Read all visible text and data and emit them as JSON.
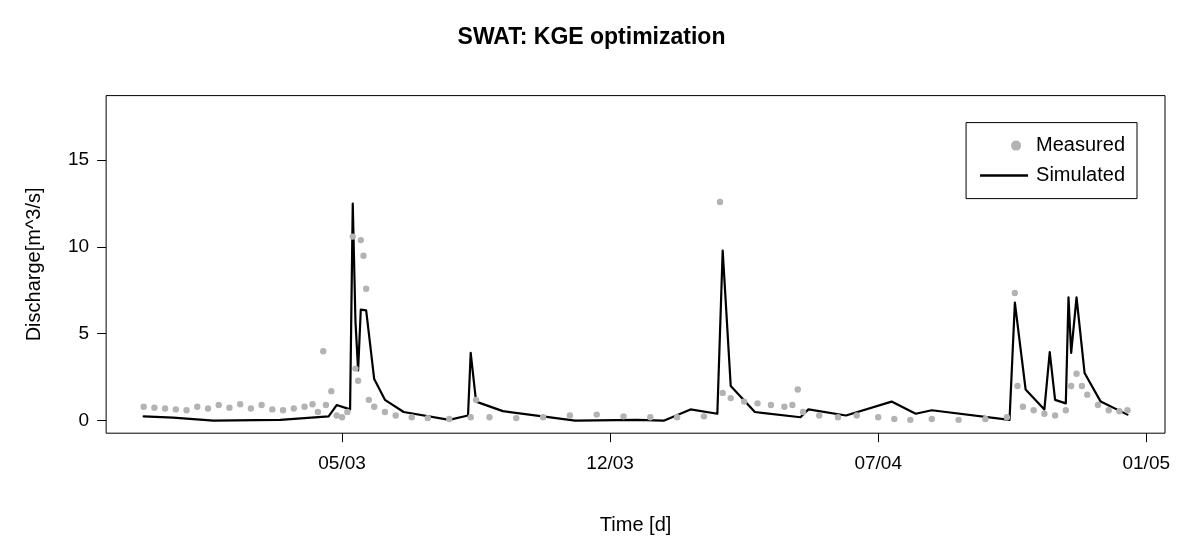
{
  "chart_data": {
    "type": "scatter",
    "title": "SWAT: KGE optimization",
    "xlabel": "Time [d]",
    "ylabel": "Discharge[m^3/s]",
    "ylim": [
      -0.72,
      18.72
    ],
    "yticks": [
      0,
      5,
      10,
      15
    ],
    "grid": false,
    "legend": "top right",
    "categories": [
      null,
      null,
      null,
      null,
      null,
      null,
      null,
      null,
      null,
      null,
      null,
      null,
      null,
      null,
      null,
      null,
      null,
      null,
      null,
      null,
      null,
      null,
      null,
      null,
      null,
      null,
      null,
      null,
      null,
      null,
      null,
      null,
      null,
      null,
      null,
      null,
      null,
      null,
      null,
      null,
      null,
      null,
      null,
      null,
      null,
      null,
      null,
      null,
      null,
      null,
      null,
      null,
      null,
      null,
      null,
      null,
      null,
      null,
      null,
      null,
      null,
      null,
      null,
      null,
      null,
      null,
      null,
      null,
      null,
      null,
      null,
      null,
      null,
      null,
      null,
      null,
      null,
      null,
      null,
      null,
      null,
      null,
      null,
      null,
      null,
      null,
      null,
      null,
      "05/03",
      null,
      null,
      null,
      null,
      null,
      null,
      null,
      null,
      null,
      null,
      null,
      null,
      null,
      null,
      null,
      null,
      null,
      null,
      null,
      null,
      null,
      null,
      null,
      null,
      null,
      null,
      null,
      null,
      null,
      null,
      null,
      null,
      null,
      null,
      null,
      null,
      null,
      null,
      null,
      null,
      null,
      null,
      null,
      null,
      null,
      null,
      null,
      null,
      null,
      null,
      null,
      null,
      null,
      null,
      null,
      null,
      null,
      null,
      null,
      null,
      null,
      null,
      null,
      null,
      null,
      null,
      null,
      null,
      null,
      null,
      null,
      null,
      null,
      null,
      null,
      null,
      null,
      null,
      null,
      null,
      null,
      null,
      null,
      null,
      null,
      null,
      null,
      null,
      null,
      null,
      null,
      null,
      null,
      null,
      null,
      null,
      null,
      null,
      null,
      "12/03",
      null,
      null,
      null,
      null,
      null,
      null,
      null,
      null,
      null,
      null,
      null,
      null,
      null,
      null,
      null,
      null,
      null,
      null,
      null,
      null,
      null,
      null,
      null,
      null,
      null,
      null,
      null,
      null,
      null,
      null,
      null,
      null,
      null,
      null,
      null,
      null,
      null,
      null,
      null,
      null,
      null,
      null,
      null,
      null,
      null,
      null,
      null,
      null,
      null,
      null,
      null,
      null,
      null,
      null,
      null,
      null,
      null,
      null,
      null,
      null,
      null,
      null,
      null,
      null,
      null,
      null,
      null,
      null,
      null,
      null,
      null,
      null,
      null,
      null,
      null,
      null,
      null,
      null,
      null,
      null,
      null,
      null,
      null,
      null,
      null,
      null,
      null,
      null,
      null,
      null,
      null,
      null,
      null,
      null,
      null,
      null,
      null,
      null,
      null,
      "07/04",
      null,
      null,
      null,
      null,
      null,
      null,
      null,
      null,
      null,
      null,
      null,
      null,
      null,
      null,
      null,
      null,
      null,
      null,
      null,
      null,
      null,
      null,
      null,
      null,
      null,
      null,
      null,
      null,
      null,
      null,
      null,
      null,
      null,
      null,
      null,
      null,
      null,
      null,
      null,
      null,
      null,
      null,
      null,
      null,
      null,
      null,
      null,
      null,
      null,
      null,
      null,
      null,
      null,
      null,
      null,
      null,
      null,
      null,
      null,
      null,
      null,
      null,
      null,
      null,
      null,
      null,
      null,
      null,
      null,
      null,
      null,
      null,
      null,
      null,
      null,
      null,
      null,
      null,
      null,
      null,
      null,
      null,
      null,
      null,
      null,
      null,
      null,
      null,
      null,
      null,
      null,
      null,
      null,
      null,
      null,
      null,
      null,
      null,
      null,
      "01/05",
      null,
      null,
      null,
      null,
      null,
      null,
      null
    ],
    "series": [
      {
        "name": "Measured",
        "marker": "circle",
        "color": "#b3b3b3",
        "values": [
          null,
          null,
          null,
          null,
          null,
          null,
          null,
          null,
          null,
          null,
          null,
          null,
          null,
          null,
          0.8,
          null,
          null,
          null,
          0.75,
          null,
          null,
          null,
          0.7,
          null,
          null,
          null,
          0.65,
          null,
          null,
          null,
          0.6,
          null,
          null,
          null,
          0.8,
          null,
          null,
          null,
          0.7,
          null,
          null,
          null,
          0.9,
          null,
          null,
          null,
          0.75,
          null,
          null,
          null,
          0.95,
          null,
          null,
          null,
          0.7,
          null,
          null,
          null,
          0.9,
          null,
          null,
          null,
          0.65,
          null,
          null,
          null,
          0.6,
          null,
          null,
          null,
          0.7,
          null,
          null,
          null,
          0.8,
          null,
          null,
          0.95,
          null,
          0.5,
          null,
          4.0,
          0.9,
          null,
          1.7,
          null,
          0.3,
          null,
          0.2,
          null,
          0.5,
          null,
          10.6,
          3.0,
          2.3,
          10.4,
          9.5,
          7.6,
          1.2,
          null,
          0.8,
          null,
          null,
          null,
          0.5,
          null,
          null,
          null,
          0.3,
          null,
          null,
          null,
          null,
          null,
          0.2,
          null,
          null,
          null,
          null,
          null,
          0.15,
          null,
          null,
          null,
          null,
          null,
          null,
          null,
          0.1,
          null,
          null,
          null,
          null,
          null,
          null,
          null,
          0.2,
          null,
          1.2,
          null,
          null,
          null,
          null,
          0.2,
          null,
          null,
          null,
          null,
          null,
          null,
          null,
          null,
          null,
          0.15,
          null,
          null,
          null,
          null,
          null,
          null,
          null,
          null,
          null,
          0.2,
          null,
          null,
          null,
          null,
          null,
          null,
          null,
          null,
          null,
          0.3,
          null,
          null,
          null,
          null,
          null,
          null,
          null,
          null,
          null,
          0.35,
          null,
          null,
          null,
          null,
          null,
          null,
          null,
          null,
          null,
          0.25,
          null,
          null,
          null,
          null,
          null,
          null,
          null,
          null,
          null,
          0.2,
          null,
          null,
          null,
          null,
          null,
          null,
          null,
          null,
          null,
          0.2,
          null,
          null,
          null,
          null,
          null,
          null,
          null,
          null,
          null,
          0.25,
          null,
          null,
          null,
          null,
          null,
          12.6,
          1.6,
          null,
          null,
          1.3,
          null,
          null,
          null,
          null,
          1.1,
          null,
          null,
          null,
          null,
          1.0,
          null,
          null,
          null,
          null,
          0.9,
          null,
          null,
          null,
          null,
          0.8,
          null,
          null,
          0.9,
          null,
          1.8,
          null,
          0.5,
          null,
          null,
          null,
          null,
          null,
          0.3,
          null,
          null,
          null,
          null,
          null,
          null,
          0.2,
          null,
          null,
          null,
          null,
          null,
          null,
          0.3,
          null,
          null,
          null,
          null,
          null,
          null,
          null,
          0.2,
          null,
          null,
          null,
          null,
          null,
          0.1,
          null,
          null,
          null,
          null,
          null,
          0.05,
          null,
          null,
          null,
          null,
          null,
          null,
          null,
          0.1,
          null,
          null,
          null,
          null,
          null,
          null,
          null,
          null,
          null,
          0.05,
          null,
          null,
          null,
          null,
          null,
          null,
          null,
          null,
          null,
          0.1,
          null,
          null,
          null,
          null,
          null,
          null,
          null,
          0.2,
          null,
          null,
          7.35,
          2.0,
          null,
          0.8,
          null,
          null,
          null,
          0.6,
          null,
          null,
          null,
          0.4,
          null,
          null,
          null,
          0.3,
          null,
          null,
          null,
          0.6,
          null,
          2.0,
          null,
          2.7,
          null,
          2.0,
          null,
          1.5,
          null,
          null,
          null,
          0.9,
          null,
          null,
          null,
          0.6,
          null,
          null,
          null,
          0.55,
          null,
          null,
          0.6,
          null,
          null,
          null,
          null,
          null,
          null,
          null,
          null,
          null,
          null,
          null,
          null,
          null,
          null
        ]
      },
      {
        "name": "Simulated",
        "type": "line",
        "marker": "none",
        "line_style": "solid",
        "color": "#000000",
        "values": [
          null,
          null,
          null,
          null,
          null,
          null,
          null,
          null,
          null,
          null,
          null,
          null,
          null,
          null,
          0.25,
          null,
          null,
          null,
          null,
          null,
          null,
          null,
          null,
          null,
          null,
          0.18,
          null,
          null,
          null,
          null,
          null,
          null,
          null,
          null,
          null,
          null,
          null,
          null,
          null,
          null,
          0.0,
          null,
          null,
          null,
          null,
          null,
          null,
          null,
          null,
          null,
          null,
          null,
          null,
          null,
          null,
          null,
          null,
          null,
          null,
          null,
          null,
          null,
          null,
          null,
          null,
          0.05,
          null,
          null,
          null,
          null,
          null,
          null,
          null,
          null,
          null,
          null,
          null,
          null,
          null,
          null,
          null,
          null,
          null,
          0.25,
          null,
          null,
          0.9,
          null,
          null,
          null,
          null,
          0.65,
          12.5,
          5.75,
          2.9,
          6.4,
          null,
          6.35,
          null,
          null,
          2.4,
          null,
          null,
          null,
          1.2,
          null,
          null,
          null,
          null,
          null,
          null,
          0.5,
          null,
          null,
          null,
          null,
          null,
          null,
          null,
          null,
          null,
          null,
          null,
          null,
          null,
          null,
          null,
          null,
          0.05,
          null,
          null,
          null,
          null,
          null,
          null,
          0.3,
          3.9,
          null,
          1.1,
          null,
          null,
          null,
          null,
          null,
          null,
          null,
          null,
          null,
          0.55,
          null,
          null,
          null,
          null,
          null,
          null,
          null,
          null,
          null,
          null,
          null,
          null,
          null,
          null,
          null,
          null,
          null,
          null,
          null,
          null,
          null,
          null,
          null,
          null,
          null,
          null,
          0.0,
          null,
          null,
          null,
          null,
          null,
          null,
          null,
          null,
          null,
          null,
          null,
          null,
          null,
          null,
          null,
          null,
          null,
          null,
          null,
          null,
          null,
          null,
          0.05,
          null,
          null,
          null,
          null,
          null,
          null,
          null,
          null,
          null,
          0.0,
          null,
          null,
          null,
          null,
          null,
          null,
          null,
          null,
          null,
          0.65,
          null,
          null,
          null,
          null,
          null,
          null,
          null,
          null,
          null,
          0.4,
          null,
          9.8,
          null,
          null,
          2.0,
          null,
          null,
          null,
          null,
          null,
          null,
          null,
          null,
          0.5,
          null,
          null,
          null,
          null,
          null,
          null,
          null,
          null,
          null,
          null,
          null,
          null,
          null,
          null,
          null,
          null,
          0.2,
          null,
          null,
          0.65,
          null,
          null,
          null,
          null,
          null,
          null,
          null,
          null,
          null,
          null,
          null,
          null,
          null,
          0.3,
          null,
          null,
          null,
          null,
          null,
          null,
          null,
          null,
          null,
          null,
          null,
          null,
          null,
          null,
          null,
          null,
          1.1,
          null,
          null,
          null,
          null,
          null,
          null,
          null,
          null,
          0.4,
          null,
          null,
          null,
          null,
          null,
          0.6,
          null,
          null,
          null,
          null,
          null,
          null,
          null,
          null,
          null,
          null,
          null,
          null,
          null,
          null,
          null,
          null,
          null,
          null,
          null,
          null,
          null,
          null,
          null,
          null,
          null,
          null,
          null,
          null,
          0.05,
          null,
          6.8,
          null,
          null,
          null,
          1.8,
          null,
          null,
          null,
          null,
          null,
          null,
          0.65,
          null,
          3.95,
          null,
          1.2,
          null,
          null,
          null,
          1.0,
          7.1,
          3.9,
          null,
          7.1,
          null,
          null,
          2.75,
          null,
          null,
          null,
          null,
          null,
          1.1,
          null,
          null,
          null,
          null,
          null,
          null,
          null,
          null,
          null,
          0.35,
          null,
          null,
          null,
          null,
          null,
          null,
          null,
          null,
          null,
          null,
          null,
          null,
          null,
          null
        ]
      }
    ]
  }
}
